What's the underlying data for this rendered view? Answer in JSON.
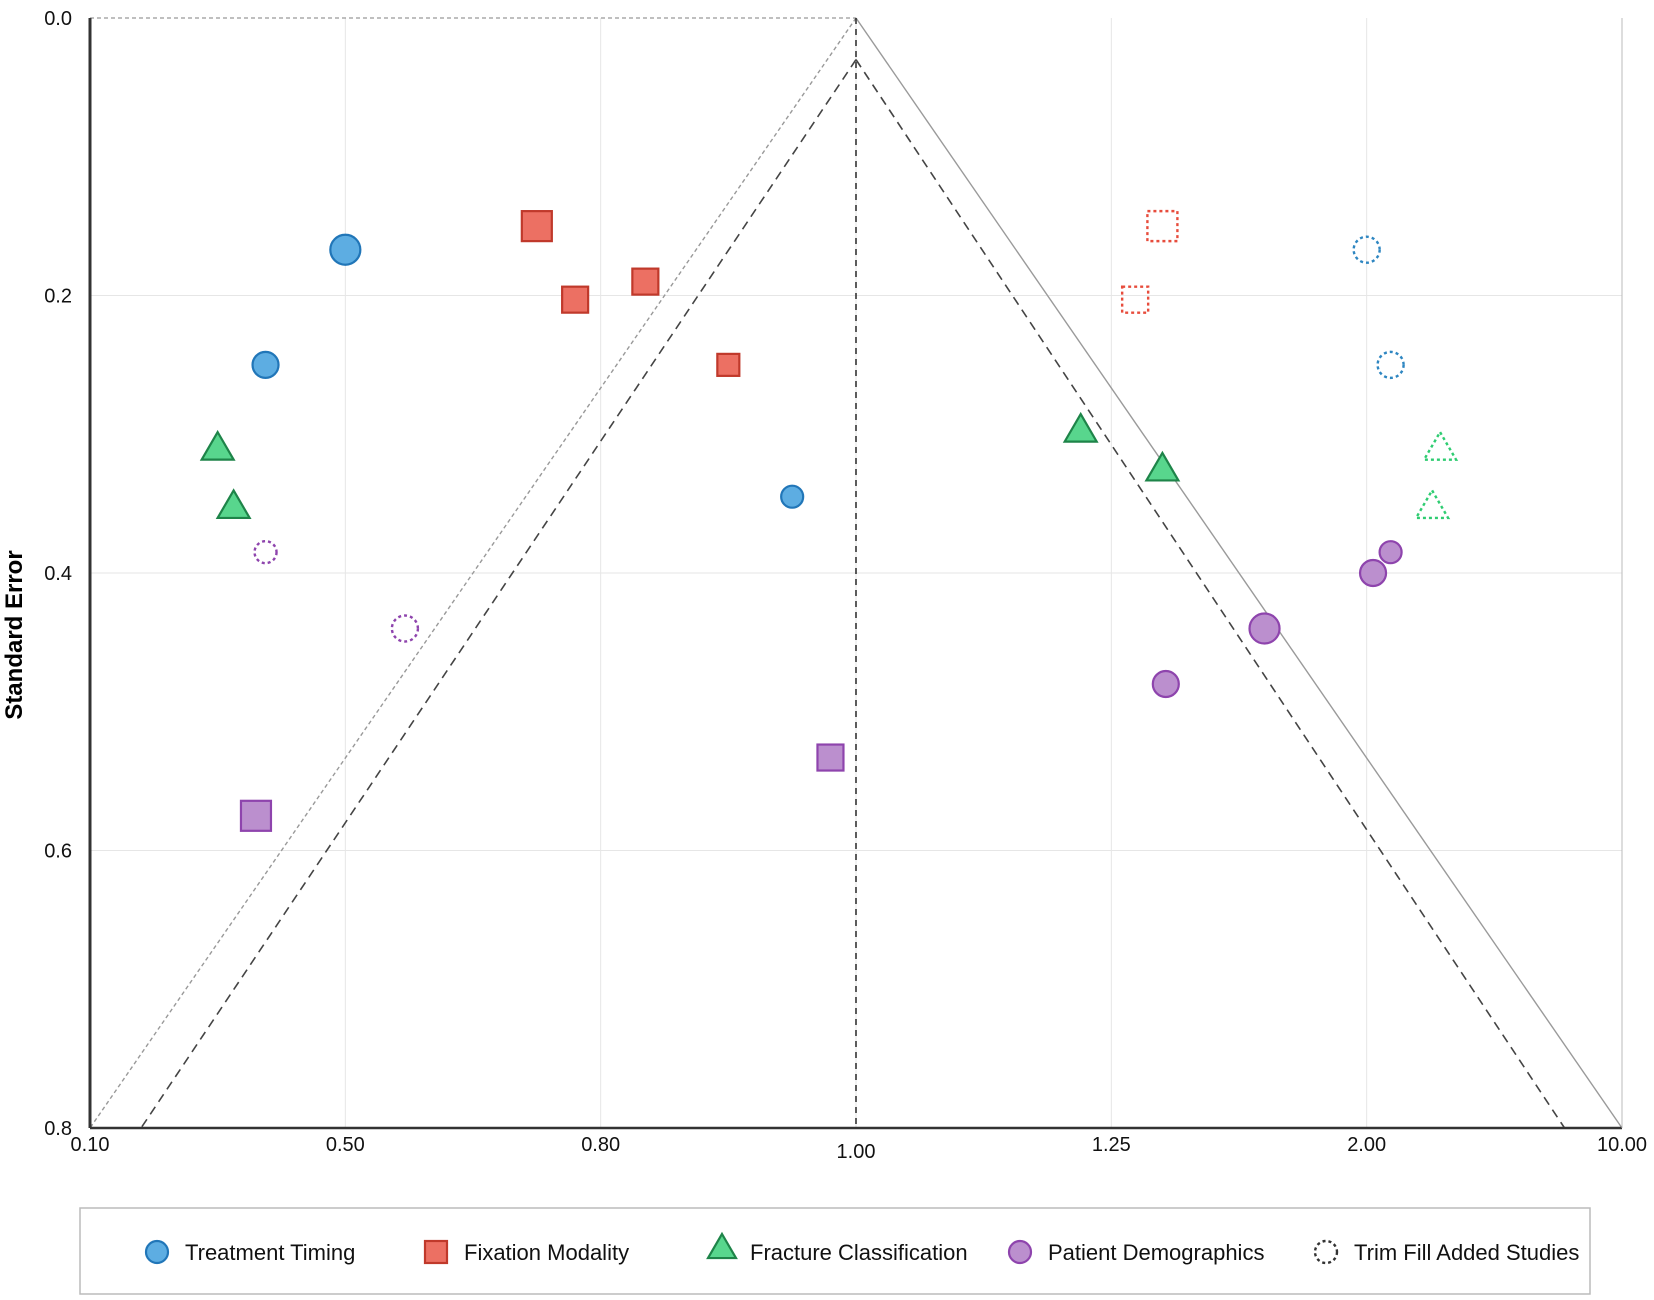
{
  "chart_data": {
    "type": "scatter",
    "subtype": "funnel-plot",
    "title": "",
    "xlabel": "",
    "ylabel": "Standard Error",
    "x_axis": {
      "tick_labels": [
        "0.10",
        "0.50",
        "0.80",
        "1.00",
        "1.25",
        "2.00",
        "10.00"
      ],
      "note": "tick labels are evenly spaced (non-linear scale)"
    },
    "y_axis": {
      "reversed": true,
      "ylim": [
        0.0,
        0.8
      ],
      "ticks": [
        0.0,
        0.2,
        0.4,
        0.6,
        0.8
      ],
      "tick_labels": [
        "0.0",
        "0.2",
        "0.4",
        "0.6",
        "0.8"
      ]
    },
    "grid": true,
    "reference_lines": [
      {
        "kind": "pooled-estimate",
        "x": "1.00",
        "style": "dashed"
      },
      {
        "kind": "funnel-outer",
        "apex": [
          "1.00",
          0.0
        ],
        "base": [
          "0.10",
          "10.00"
        ],
        "style": "light-dotted/solid"
      },
      {
        "kind": "funnel-inner",
        "style": "dashed"
      }
    ],
    "series": [
      {
        "name": "Treatment Timing",
        "marker": "circle",
        "color": "#5dade2",
        "stroke": "#2176b8",
        "points": [
          {
            "x": 0.5,
            "se": 0.167,
            "size": "large",
            "added": false
          },
          {
            "x": 0.375,
            "se": 0.25,
            "size": "medium",
            "added": false
          },
          {
            "x": 0.95,
            "se": 0.345,
            "size": "small",
            "added": false
          },
          {
            "x": 2.0,
            "se": 0.167,
            "size": "medium",
            "added": true
          },
          {
            "x": 2.75,
            "se": 0.25,
            "size": "medium",
            "added": true
          }
        ]
      },
      {
        "name": "Fixation Modality",
        "marker": "square",
        "color": "#ec7063",
        "stroke": "#c0392b",
        "points": [
          {
            "x": 0.725,
            "se": 0.15,
            "size": "large",
            "added": false
          },
          {
            "x": 0.77,
            "se": 0.203,
            "size": "medium",
            "added": false
          },
          {
            "x": 0.835,
            "se": 0.19,
            "size": "medium",
            "added": false
          },
          {
            "x": 0.9,
            "se": 0.25,
            "size": "small",
            "added": false
          },
          {
            "x": 1.4,
            "se": 0.15,
            "size": "large",
            "added": true
          },
          {
            "x": 1.32,
            "se": 0.203,
            "size": "medium",
            "added": true
          }
        ]
      },
      {
        "name": "Fracture Classification",
        "marker": "triangle",
        "color": "#58d68d",
        "stroke": "#1e8449",
        "points": [
          {
            "x": 0.3,
            "se": 0.31,
            "size": "medium",
            "added": false
          },
          {
            "x": 0.325,
            "se": 0.352,
            "size": "medium",
            "added": false
          },
          {
            "x": 1.22,
            "se": 0.297,
            "size": "medium",
            "added": false
          },
          {
            "x": 1.4,
            "se": 0.325,
            "size": "medium",
            "added": false
          },
          {
            "x": 4.3,
            "se": 0.31,
            "size": "medium",
            "added": true
          },
          {
            "x": 4.05,
            "se": 0.352,
            "size": "medium",
            "added": true
          }
        ]
      },
      {
        "name": "Patient Demographics",
        "marker": "circle-or-square",
        "color": "#bb8fce",
        "stroke": "#8e44ad",
        "points": [
          {
            "x": 0.36,
            "se": 0.575,
            "marker": "square",
            "size": "large",
            "added": false
          },
          {
            "x": 0.98,
            "se": 0.533,
            "marker": "square",
            "size": "medium",
            "added": false
          },
          {
            "x": 1.7,
            "se": 0.44,
            "marker": "circle",
            "size": "large",
            "added": false
          },
          {
            "x": 1.41,
            "se": 0.48,
            "marker": "circle",
            "size": "medium",
            "added": false
          },
          {
            "x": 2.2,
            "se": 0.4,
            "marker": "circle",
            "size": "medium",
            "added": false
          },
          {
            "x": 2.75,
            "se": 0.385,
            "marker": "circle",
            "size": "small",
            "added": false
          },
          {
            "x": 0.375,
            "se": 0.385,
            "marker": "circle",
            "size": "small",
            "added": true
          },
          {
            "x": 0.57,
            "se": 0.44,
            "marker": "circle",
            "size": "medium",
            "added": true
          }
        ]
      }
    ],
    "legend": {
      "placement": "bottom",
      "entries": [
        {
          "label": "Treatment Timing",
          "marker": "circle",
          "color": "#5dade2",
          "stroke": "#2176b8"
        },
        {
          "label": "Fixation Modality",
          "marker": "square",
          "color": "#ec7063",
          "stroke": "#c0392b"
        },
        {
          "label": "Fracture Classification",
          "marker": "triangle",
          "color": "#58d68d",
          "stroke": "#1e8449"
        },
        {
          "label": "Patient Demographics",
          "marker": "circle",
          "color": "#bb8fce",
          "stroke": "#8e44ad"
        },
        {
          "label": "Trim Fill Added Studies",
          "marker": "dotted-circle",
          "color": "none",
          "stroke": "#333333"
        }
      ]
    }
  }
}
